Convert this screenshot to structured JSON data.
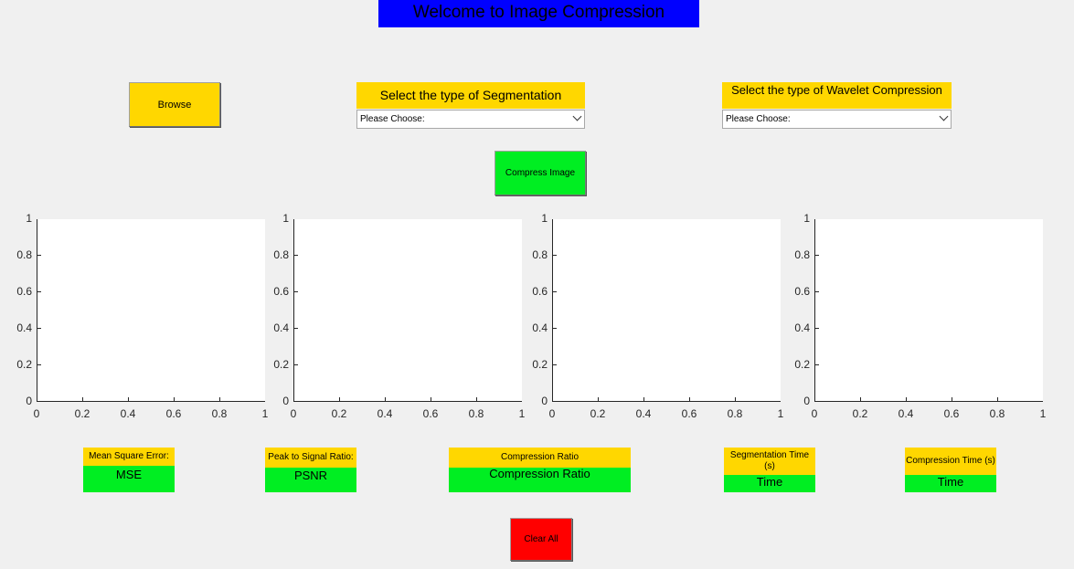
{
  "title": "Welcome to Image Compression",
  "browse_label": "Browse",
  "segmentation": {
    "label": "Select the type of Segmentation",
    "selected": "Please Choose:"
  },
  "wavelet": {
    "label": "Select the type of Wavelet Compression",
    "selected": "Please Choose:"
  },
  "compress_label": "Compress Image",
  "axes_ticks": [
    "0",
    "0.2",
    "0.4",
    "0.6",
    "0.8",
    "1"
  ],
  "metrics": {
    "mse": {
      "label": "Mean Square Error:",
      "value": "MSE"
    },
    "psnr": {
      "label": "Peak to Signal Ratio:",
      "value": "PSNR"
    },
    "compression_ratio": {
      "label": "Compression Ratio",
      "value": "Compression Ratio"
    },
    "segmentation_time": {
      "label": "Segmentation Time (s)",
      "value": "Time"
    },
    "compression_time": {
      "label": "Compression Time (s)",
      "value": "Time"
    }
  },
  "clear_label": "Clear All",
  "colors": {
    "title_bg": "#0000ff",
    "label_bg": "#ffd700",
    "value_bg": "#00ee22",
    "clear_bg": "#ff0000"
  }
}
